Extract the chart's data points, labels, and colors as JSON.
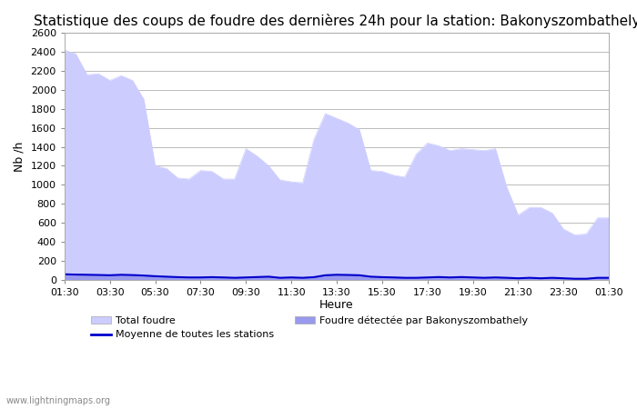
{
  "title": "Statistique des coups de foudre des dernières 24h pour la station: Bakonyszombathely",
  "xlabel": "Heure",
  "ylabel": "Nb /h",
  "ylim": [
    0,
    2600
  ],
  "yticks": [
    0,
    200,
    400,
    600,
    800,
    1000,
    1200,
    1400,
    1600,
    1800,
    2000,
    2200,
    2400,
    2600
  ],
  "xtick_labels": [
    "01:30",
    "03:30",
    "05:30",
    "07:30",
    "09:30",
    "11:30",
    "13:30",
    "15:30",
    "17:30",
    "19:30",
    "21:30",
    "23:30",
    "01:30"
  ],
  "fill_color_light": "#ccccff",
  "fill_color_dark": "#9999ee",
  "line_color": "#0000cc",
  "background_color": "#ffffff",
  "watermark": "www.lightningmaps.org",
  "title_fontsize": 11,
  "axis_fontsize": 9,
  "tick_fontsize": 8,
  "x": [
    0,
    0.5,
    1,
    1.5,
    2,
    2.5,
    3,
    3.5,
    4,
    4.5,
    5,
    5.5,
    6,
    6.5,
    7,
    7.5,
    8,
    8.5,
    9,
    9.5,
    10,
    10.5,
    11,
    11.5,
    12,
    12.5,
    13,
    13.5,
    14,
    14.5,
    15,
    15.5,
    16,
    16.5,
    17,
    17.5,
    18,
    18.5,
    19,
    19.5,
    20,
    20.5,
    21,
    21.5,
    22,
    22.5,
    23,
    23.5,
    24
  ],
  "total_foudre": [
    2420,
    2380,
    2160,
    2170,
    2100,
    2150,
    2100,
    1900,
    1200,
    1170,
    1070,
    1060,
    1150,
    1140,
    1060,
    1060,
    1380,
    1300,
    1200,
    1050,
    1030,
    1020,
    1480,
    1750,
    1700,
    1650,
    1580,
    1150,
    1140,
    1100,
    1080,
    1320,
    1440,
    1410,
    1360,
    1380,
    1370,
    1360,
    1380,
    970,
    680,
    760,
    760,
    700,
    530,
    470,
    480,
    650,
    650
  ],
  "local_foudre": [
    70,
    65,
    60,
    55,
    50,
    55,
    50,
    45,
    40,
    35,
    30,
    25,
    25,
    30,
    25,
    20,
    25,
    30,
    35,
    20,
    25,
    20,
    30,
    50,
    60,
    55,
    50,
    35,
    30,
    25,
    20,
    20,
    25,
    30,
    25,
    30,
    25,
    20,
    25,
    20,
    15,
    20,
    15,
    20,
    15,
    10,
    10,
    20,
    20
  ],
  "moyenne": [
    55,
    52,
    50,
    48,
    45,
    50,
    47,
    42,
    35,
    30,
    25,
    22,
    22,
    25,
    22,
    18,
    22,
    26,
    30,
    18,
    22,
    18,
    25,
    45,
    50,
    48,
    45,
    30,
    25,
    22,
    18,
    18,
    22,
    26,
    22,
    26,
    22,
    18,
    22,
    18,
    13,
    18,
    13,
    18,
    13,
    8,
    8,
    18,
    18
  ]
}
